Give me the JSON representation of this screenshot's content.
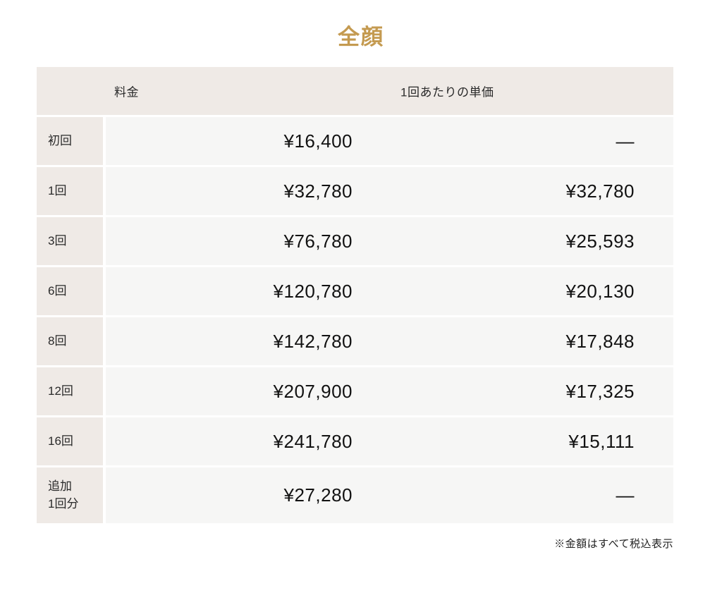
{
  "page": {
    "title": "全顔",
    "footnote": "※金額はすべて税込表示",
    "accent_color": "#c49a50",
    "label_bg_color": "#efeae6",
    "cell_bg_color": "#f6f6f5"
  },
  "table": {
    "headers": {
      "price": "料金",
      "unit": "1回あたりの単価"
    },
    "rows": [
      {
        "label": "初回",
        "price": "¥16,400",
        "unit": "—"
      },
      {
        "label": "1回",
        "price": "¥32,780",
        "unit": "¥32,780"
      },
      {
        "label": "3回",
        "price": "¥76,780",
        "unit": "¥25,593"
      },
      {
        "label": "6回",
        "price": "¥120,780",
        "unit": "¥20,130"
      },
      {
        "label": "8回",
        "price": "¥142,780",
        "unit": "¥17,848"
      },
      {
        "label": "12回",
        "price": "¥207,900",
        "unit": "¥17,325"
      },
      {
        "label": "16回",
        "price": "¥241,780",
        "unit": "¥15,111"
      },
      {
        "label": "追加\n1回分",
        "price": "¥27,280",
        "unit": "—"
      }
    ]
  }
}
